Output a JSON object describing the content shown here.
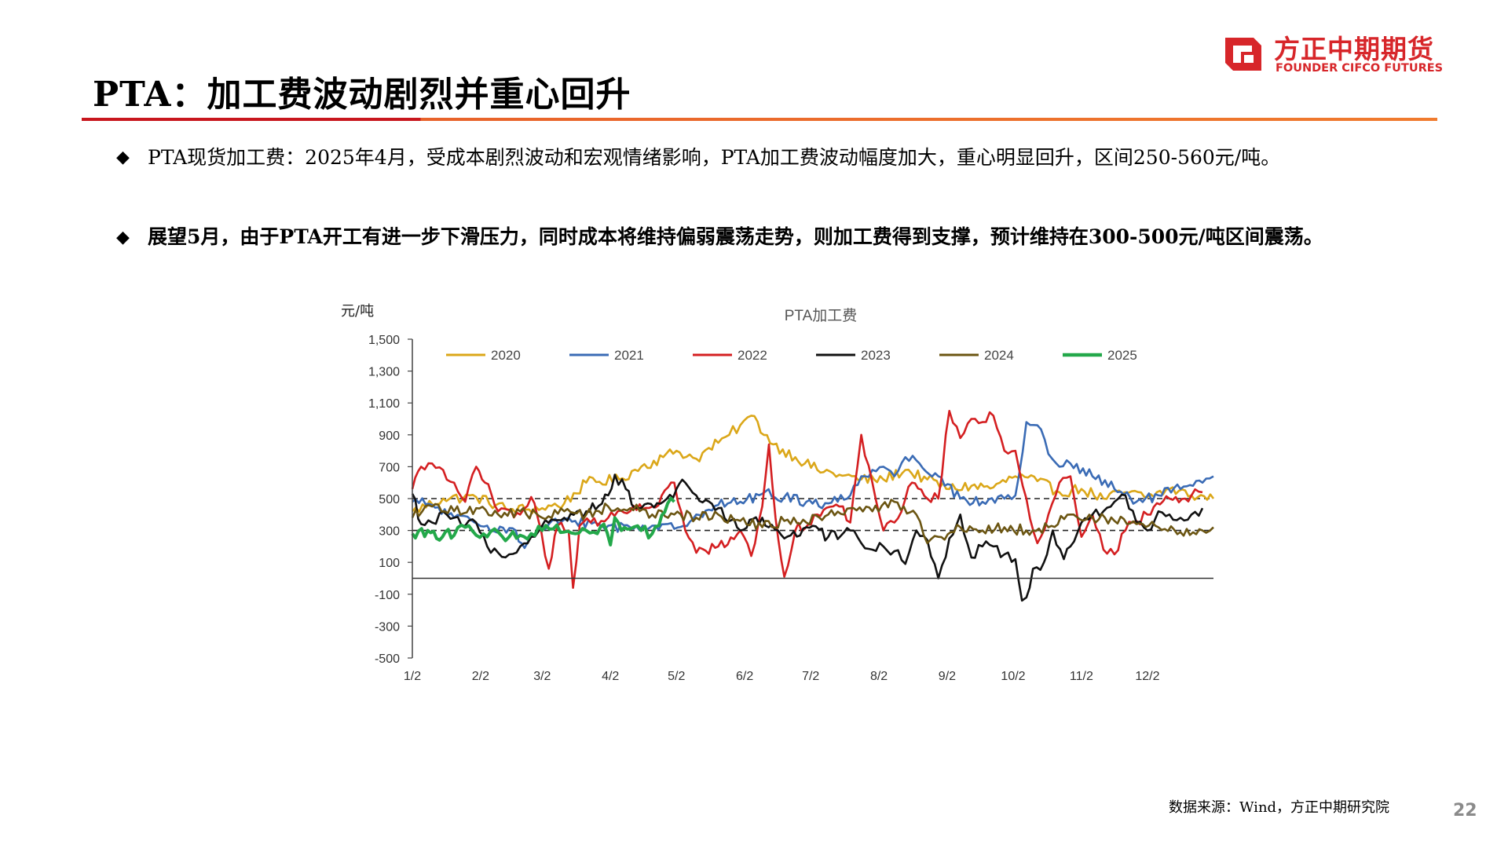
{
  "brand": {
    "name_cn": "方正中期期货",
    "name_en": "FOUNDER CIFCO FUTURES",
    "color": "#d7262a"
  },
  "page": {
    "title": "PTA：加工费波动剧烈并重心回升",
    "page_number": "22"
  },
  "bullets": [
    {
      "icon": "diamond-bullet",
      "text": "PTA现货加工费：2025年4月，受成本剧烈波动和宏观情绪影响，PTA加工费波动幅度加大，重心明显回升，区间250-560元/吨。"
    },
    {
      "icon": "diamond-bullet",
      "text": "展望5月，由于PTA开工有进一步下滑压力，同时成本将维持偏弱震荡走势，则加工费得到支撑，预计维持在300-500元/吨区间震荡。"
    }
  ],
  "source": "数据来源：Wind，方正中期研究院",
  "chart_data": {
    "type": "line",
    "title": "PTA加工费",
    "ylabel": "元/吨",
    "xlabel": "",
    "ylim": [
      -500,
      1500
    ],
    "y_ticks": [
      "1,500",
      "1,300",
      "1,100",
      "900",
      "700",
      "500",
      "300",
      "100",
      "-100",
      "-300",
      "-500"
    ],
    "x_ticks": [
      "1/2",
      "2/2",
      "3/2",
      "4/2",
      "5/2",
      "6/2",
      "7/2",
      "8/2",
      "9/2",
      "10/2",
      "11/2",
      "12/2"
    ],
    "x_tick_days": [
      1,
      32,
      60,
      91,
      121,
      152,
      182,
      213,
      244,
      274,
      305,
      335
    ],
    "xlim": [
      1,
      365
    ],
    "legend_position": "top",
    "reference_lines": [
      300,
      500
    ],
    "series": [
      {
        "name": "2020",
        "color": "#dba719",
        "points": [
          [
            1,
            420
          ],
          [
            15,
            500
          ],
          [
            30,
            510
          ],
          [
            45,
            430
          ],
          [
            60,
            440
          ],
          [
            70,
            470
          ],
          [
            80,
            600
          ],
          [
            95,
            620
          ],
          [
            105,
            700
          ],
          [
            115,
            760
          ],
          [
            121,
            800
          ],
          [
            130,
            750
          ],
          [
            140,
            850
          ],
          [
            145,
            900
          ],
          [
            150,
            960
          ],
          [
            155,
            1020
          ],
          [
            165,
            840
          ],
          [
            175,
            760
          ],
          [
            185,
            680
          ],
          [
            195,
            650
          ],
          [
            205,
            620
          ],
          [
            215,
            620
          ],
          [
            225,
            680
          ],
          [
            235,
            620
          ],
          [
            245,
            560
          ],
          [
            255,
            580
          ],
          [
            265,
            570
          ],
          [
            275,
            640
          ],
          [
            285,
            610
          ],
          [
            295,
            540
          ],
          [
            305,
            560
          ],
          [
            315,
            500
          ],
          [
            325,
            540
          ],
          [
            335,
            510
          ],
          [
            345,
            560
          ],
          [
            355,
            520
          ],
          [
            365,
            500
          ]
        ]
      },
      {
        "name": "2021",
        "color": "#3a6bb5",
        "points": [
          [
            1,
            480
          ],
          [
            10,
            460
          ],
          [
            20,
            380
          ],
          [
            35,
            330
          ],
          [
            48,
            300
          ],
          [
            52,
            190
          ],
          [
            60,
            330
          ],
          [
            75,
            360
          ],
          [
            90,
            330
          ],
          [
            100,
            320
          ],
          [
            110,
            330
          ],
          [
            120,
            310
          ],
          [
            130,
            400
          ],
          [
            140,
            460
          ],
          [
            150,
            480
          ],
          [
            160,
            530
          ],
          [
            170,
            510
          ],
          [
            180,
            480
          ],
          [
            190,
            470
          ],
          [
            200,
            520
          ],
          [
            205,
            640
          ],
          [
            210,
            680
          ],
          [
            215,
            700
          ],
          [
            220,
            640
          ],
          [
            225,
            760
          ],
          [
            230,
            740
          ],
          [
            240,
            640
          ],
          [
            250,
            500
          ],
          [
            260,
            480
          ],
          [
            270,
            500
          ],
          [
            275,
            520
          ],
          [
            280,
            980
          ],
          [
            285,
            960
          ],
          [
            290,
            780
          ],
          [
            295,
            700
          ],
          [
            300,
            720
          ],
          [
            310,
            640
          ],
          [
            320,
            560
          ],
          [
            330,
            480
          ],
          [
            340,
            520
          ],
          [
            350,
            560
          ],
          [
            360,
            600
          ],
          [
            365,
            640
          ]
        ]
      },
      {
        "name": "2022",
        "color": "#d41f21",
        "points": [
          [
            1,
            560
          ],
          [
            5,
            700
          ],
          [
            10,
            720
          ],
          [
            15,
            680
          ],
          [
            20,
            600
          ],
          [
            25,
            480
          ],
          [
            30,
            700
          ],
          [
            34,
            600
          ],
          [
            40,
            420
          ],
          [
            50,
            400
          ],
          [
            55,
            510
          ],
          [
            58,
            380
          ],
          [
            63,
            60
          ],
          [
            67,
            330
          ],
          [
            72,
            300
          ],
          [
            74,
            -60
          ],
          [
            77,
            330
          ],
          [
            82,
            350
          ],
          [
            90,
            380
          ],
          [
            100,
            420
          ],
          [
            110,
            450
          ],
          [
            120,
            600
          ],
          [
            125,
            300
          ],
          [
            130,
            160
          ],
          [
            140,
            200
          ],
          [
            150,
            300
          ],
          [
            155,
            140
          ],
          [
            160,
            450
          ],
          [
            163,
            840
          ],
          [
            166,
            380
          ],
          [
            170,
            10
          ],
          [
            175,
            300
          ],
          [
            185,
            400
          ],
          [
            195,
            450
          ],
          [
            200,
            350
          ],
          [
            205,
            900
          ],
          [
            210,
            600
          ],
          [
            215,
            300
          ],
          [
            220,
            350
          ],
          [
            228,
            600
          ],
          [
            235,
            500
          ],
          [
            240,
            500
          ],
          [
            245,
            1050
          ],
          [
            250,
            880
          ],
          [
            255,
            1000
          ],
          [
            260,
            980
          ],
          [
            265,
            1020
          ],
          [
            270,
            800
          ],
          [
            275,
            800
          ],
          [
            280,
            500
          ],
          [
            285,
            220
          ],
          [
            290,
            400
          ],
          [
            295,
            600
          ],
          [
            300,
            640
          ],
          [
            305,
            260
          ],
          [
            310,
            400
          ],
          [
            315,
            180
          ],
          [
            320,
            150
          ],
          [
            325,
            300
          ],
          [
            330,
            360
          ],
          [
            335,
            400
          ],
          [
            345,
            500
          ],
          [
            355,
            520
          ],
          [
            360,
            540
          ]
        ]
      },
      {
        "name": "2023",
        "color": "#111111",
        "points": [
          [
            1,
            530
          ],
          [
            5,
            340
          ],
          [
            10,
            350
          ],
          [
            15,
            420
          ],
          [
            20,
            380
          ],
          [
            25,
            330
          ],
          [
            30,
            350
          ],
          [
            35,
            200
          ],
          [
            40,
            160
          ],
          [
            45,
            150
          ],
          [
            50,
            200
          ],
          [
            55,
            260
          ],
          [
            60,
            330
          ],
          [
            70,
            380
          ],
          [
            80,
            420
          ],
          [
            90,
            520
          ],
          [
            93,
            650
          ],
          [
            98,
            560
          ],
          [
            102,
            440
          ],
          [
            108,
            470
          ],
          [
            115,
            480
          ],
          [
            121,
            560
          ],
          [
            125,
            600
          ],
          [
            130,
            520
          ],
          [
            140,
            440
          ],
          [
            150,
            300
          ],
          [
            160,
            380
          ],
          [
            170,
            250
          ],
          [
            180,
            320
          ],
          [
            190,
            260
          ],
          [
            200,
            300
          ],
          [
            205,
            220
          ],
          [
            210,
            180
          ],
          [
            215,
            200
          ],
          [
            220,
            170
          ],
          [
            225,
            90
          ],
          [
            230,
            300
          ],
          [
            235,
            240
          ],
          [
            240,
            0
          ],
          [
            245,
            250
          ],
          [
            250,
            400
          ],
          [
            255,
            130
          ],
          [
            260,
            200
          ],
          [
            265,
            200
          ],
          [
            270,
            150
          ],
          [
            275,
            120
          ],
          [
            278,
            -140
          ],
          [
            280,
            -120
          ],
          [
            283,
            60
          ],
          [
            288,
            100
          ],
          [
            292,
            300
          ],
          [
            297,
            120
          ],
          [
            300,
            200
          ],
          [
            305,
            350
          ],
          [
            310,
            400
          ],
          [
            315,
            420
          ],
          [
            320,
            480
          ],
          [
            325,
            520
          ],
          [
            330,
            350
          ],
          [
            335,
            300
          ],
          [
            340,
            420
          ],
          [
            345,
            400
          ],
          [
            350,
            380
          ],
          [
            355,
            400
          ],
          [
            360,
            440
          ]
        ]
      },
      {
        "name": "2024",
        "color": "#6b5512",
        "points": [
          [
            1,
            380
          ],
          [
            10,
            450
          ],
          [
            20,
            420
          ],
          [
            30,
            440
          ],
          [
            40,
            400
          ],
          [
            50,
            420
          ],
          [
            60,
            380
          ],
          [
            70,
            420
          ],
          [
            80,
            400
          ],
          [
            90,
            450
          ],
          [
            100,
            440
          ],
          [
            110,
            400
          ],
          [
            120,
            400
          ],
          [
            130,
            380
          ],
          [
            140,
            400
          ],
          [
            150,
            360
          ],
          [
            160,
            320
          ],
          [
            170,
            360
          ],
          [
            180,
            350
          ],
          [
            190,
            400
          ],
          [
            200,
            440
          ],
          [
            210,
            420
          ],
          [
            220,
            480
          ],
          [
            230,
            400
          ],
          [
            235,
            220
          ],
          [
            240,
            260
          ],
          [
            250,
            320
          ],
          [
            260,
            300
          ],
          [
            270,
            320
          ],
          [
            280,
            300
          ],
          [
            290,
            320
          ],
          [
            300,
            400
          ],
          [
            310,
            380
          ],
          [
            320,
            360
          ],
          [
            330,
            340
          ],
          [
            340,
            320
          ],
          [
            350,
            290
          ],
          [
            360,
            300
          ],
          [
            365,
            320
          ]
        ]
      },
      {
        "name": "2025",
        "color": "#23a84a",
        "points": [
          [
            1,
            280
          ],
          [
            8,
            300
          ],
          [
            12,
            250
          ],
          [
            16,
            290
          ],
          [
            20,
            270
          ],
          [
            25,
            320
          ],
          [
            30,
            270
          ],
          [
            35,
            260
          ],
          [
            40,
            290
          ],
          [
            45,
            260
          ],
          [
            50,
            270
          ],
          [
            55,
            280
          ],
          [
            60,
            300
          ],
          [
            65,
            310
          ],
          [
            70,
            290
          ],
          [
            75,
            280
          ],
          [
            80,
            300
          ],
          [
            85,
            280
          ],
          [
            88,
            340
          ],
          [
            91,
            210
          ],
          [
            93,
            380
          ],
          [
            96,
            300
          ],
          [
            100,
            310
          ],
          [
            105,
            300
          ],
          [
            110,
            280
          ],
          [
            113,
            330
          ],
          [
            117,
            470
          ],
          [
            120,
            480
          ]
        ]
      }
    ]
  }
}
